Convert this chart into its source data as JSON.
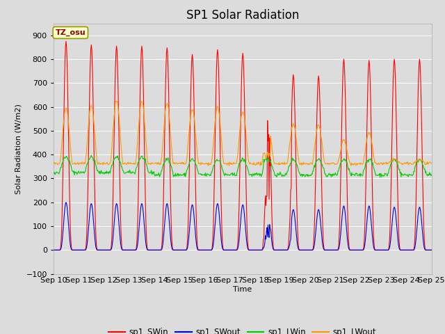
{
  "title": "SP1 Solar Radiation",
  "ylabel": "Solar Radiation (W/m2)",
  "xlabel": "Time",
  "ylim": [
    -100,
    950
  ],
  "yticks": [
    -100,
    0,
    100,
    200,
    300,
    400,
    500,
    600,
    700,
    800,
    900
  ],
  "xtick_labels": [
    "Sep 10",
    "Sep 11",
    "Sep 12",
    "Sep 13",
    "Sep 14",
    "Sep 15",
    "Sep 16",
    "Sep 17",
    "Sep 18",
    "Sep 19",
    "Sep 20",
    "Sep 21",
    "Sep 22",
    "Sep 23",
    "Sep 24",
    "Sep 25"
  ],
  "annotation_text": "TZ_osu",
  "annotation_color": "#880000",
  "annotation_bg": "#ffffcc",
  "annotation_border": "#999900",
  "colors": {
    "sp1_SWin": "#ff0000",
    "sp1_SWout": "#0000dd",
    "sp1_LWin": "#00cc00",
    "sp1_LWout": "#ff9900"
  },
  "legend_labels": [
    "sp1_SWin",
    "sp1_SWout",
    "sp1_LWin",
    "sp1_LWout"
  ],
  "background_color": "#dcdcdc",
  "plot_bg": "#dcdcdc",
  "grid_color": "white",
  "num_days": 15,
  "title_fontsize": 12
}
